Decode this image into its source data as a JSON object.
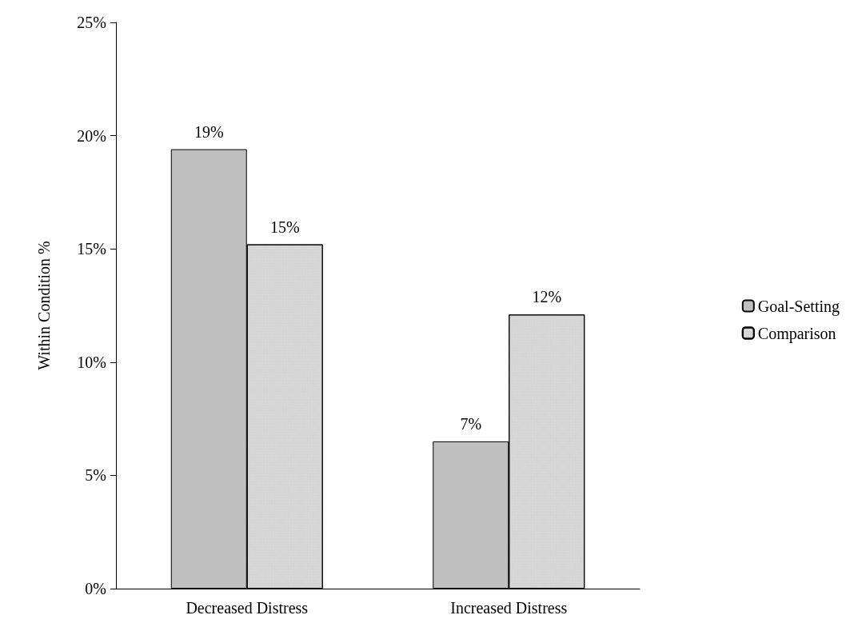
{
  "chart_data": {
    "type": "bar",
    "ylabel": "Within Condition %",
    "categories": [
      "Decreased Distress",
      "Increased Distress"
    ],
    "series": [
      {
        "name": "Goal-Setting",
        "color": "#c0c0c0",
        "values": [
          19.4,
          6.5
        ],
        "value_labels": [
          "19%",
          "7%"
        ]
      },
      {
        "name": "Comparison",
        "color": "#d9d9d9",
        "values": [
          15.2,
          12.1
        ],
        "value_labels": [
          "15%",
          "12%"
        ]
      }
    ],
    "ylim": [
      0,
      25
    ],
    "yticks": [
      {
        "value": 0,
        "label": "0%"
      },
      {
        "value": 5,
        "label": "5%"
      },
      {
        "value": 10,
        "label": "10%"
      },
      {
        "value": 15,
        "label": "15%"
      },
      {
        "value": 20,
        "label": "20%"
      },
      {
        "value": 25,
        "label": "25%"
      }
    ],
    "grid": false,
    "legend": "right"
  }
}
